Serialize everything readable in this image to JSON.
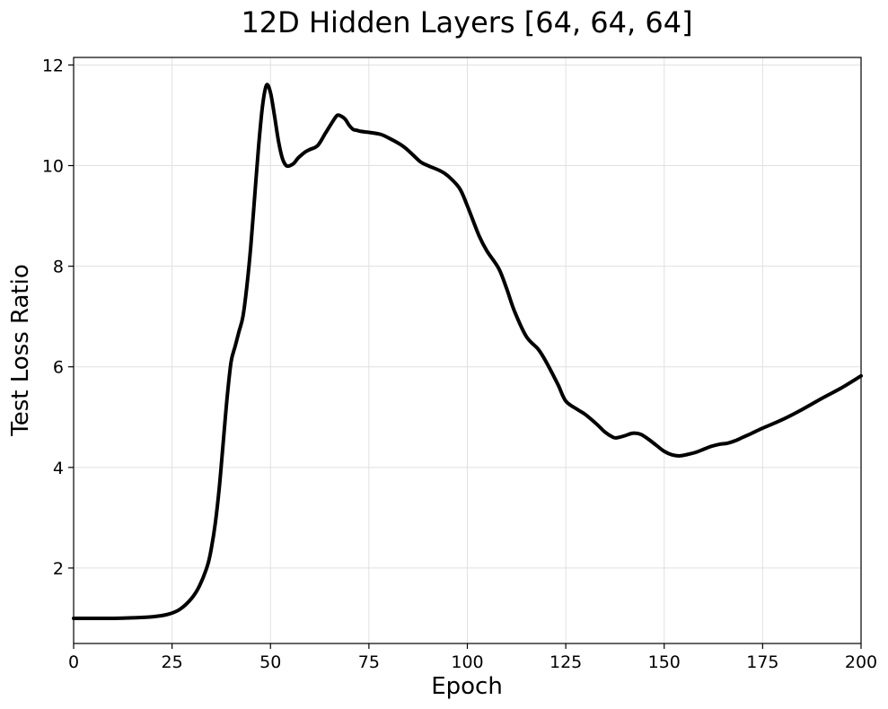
{
  "chart_data": {
    "type": "line",
    "title": "12D Hidden Layers [64, 64, 64]",
    "xlabel": "Epoch",
    "ylabel": "Test Loss Ratio",
    "xlim": [
      0,
      200
    ],
    "ylim": [
      0.5,
      12.15
    ],
    "xticks": [
      0,
      25,
      50,
      75,
      100,
      125,
      150,
      175,
      200
    ],
    "yticks": [
      2,
      4,
      6,
      8,
      10,
      12
    ],
    "grid": true,
    "series": [
      {
        "color": "#000000",
        "x": [
          0,
          5,
          10,
          15,
          20,
          24,
          27,
          30,
          32,
          34,
          35,
          36,
          37,
          38,
          39,
          40,
          41,
          42,
          43,
          44,
          45,
          46,
          47,
          48,
          49,
          50,
          51,
          52,
          53,
          54,
          55,
          56,
          57,
          58,
          59,
          60,
          62,
          64,
          66,
          67,
          68,
          69,
          70,
          71,
          72,
          73,
          74,
          75,
          78,
          80,
          83,
          85,
          88,
          90,
          93,
          95,
          98,
          100,
          103,
          105,
          108,
          110,
          112,
          115,
          118,
          120,
          123,
          125,
          128,
          130,
          133,
          135,
          137,
          138,
          140,
          142,
          144,
          146,
          148,
          150,
          152,
          154,
          156,
          158,
          160,
          162,
          164,
          166,
          168,
          170,
          172,
          175,
          180,
          185,
          190,
          195,
          200
        ],
        "y": [
          1.0,
          1.0,
          1.0,
          1.01,
          1.03,
          1.08,
          1.18,
          1.4,
          1.65,
          2.05,
          2.4,
          2.9,
          3.6,
          4.5,
          5.4,
          6.1,
          6.4,
          6.7,
          7.0,
          7.6,
          8.4,
          9.4,
          10.4,
          11.2,
          11.6,
          11.45,
          11.0,
          10.5,
          10.15,
          10.0,
          10.0,
          10.05,
          10.15,
          10.22,
          10.28,
          10.32,
          10.4,
          10.65,
          10.9,
          11.0,
          10.98,
          10.92,
          10.8,
          10.72,
          10.7,
          10.68,
          10.67,
          10.66,
          10.62,
          10.55,
          10.42,
          10.3,
          10.08,
          10.0,
          9.9,
          9.8,
          9.55,
          9.2,
          8.6,
          8.3,
          7.95,
          7.55,
          7.1,
          6.6,
          6.35,
          6.1,
          5.65,
          5.32,
          5.15,
          5.05,
          4.85,
          4.7,
          4.6,
          4.59,
          4.63,
          4.68,
          4.66,
          4.56,
          4.44,
          4.32,
          4.25,
          4.23,
          4.26,
          4.3,
          4.36,
          4.42,
          4.46,
          4.48,
          4.53,
          4.6,
          4.67,
          4.78,
          4.95,
          5.15,
          5.37,
          5.58,
          5.82
        ]
      }
    ]
  }
}
